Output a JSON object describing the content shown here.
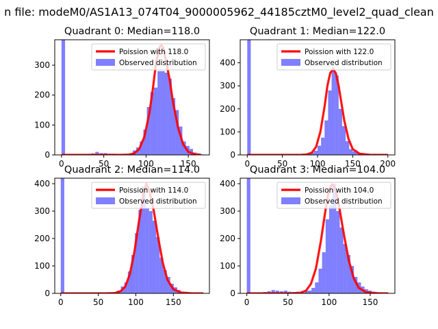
{
  "figure": {
    "suptitle": "n file: modeM0/AS1A13_074T04_9000005962_44185cztM0_level2_quad_clean"
  },
  "colors": {
    "bars": "#0000ff",
    "bar_alpha": 0.5,
    "poisson": "#ff0000"
  },
  "chart_data": [
    {
      "type": "bar",
      "title": "Quadrant 0: Median=118.0",
      "xlim": [
        -8,
        175
      ],
      "ylim": [
        0,
        385
      ],
      "xticks": [
        0,
        50,
        100,
        150
      ],
      "yticks": [
        0,
        100,
        200,
        300
      ],
      "bin_width": 4.2,
      "legend": [
        "Poission with 118.0",
        "Observed distribution"
      ],
      "series": [
        {
          "name": "Observed distribution",
          "x": [
            0,
            30,
            35,
            40,
            45,
            50,
            55,
            60,
            65,
            70,
            75,
            80,
            84.2,
            88.4,
            92.6,
            96.8,
            101,
            105.2,
            109.4,
            113.6,
            117.8,
            122,
            126.2,
            130.4,
            134.6,
            138.8,
            143,
            147.2,
            151.4,
            155.6,
            159.8,
            164
          ],
          "values": [
            400,
            3,
            5,
            10,
            6,
            6,
            4,
            4,
            3,
            3,
            3,
            5,
            15,
            25,
            45,
            85,
            160,
            210,
            225,
            280,
            280,
            275,
            255,
            190,
            150,
            95,
            45,
            30,
            20,
            8,
            5,
            2
          ]
        },
        {
          "name": "Poission with 118.0",
          "x": [
            0,
            70,
            80,
            86,
            92,
            98,
            104,
            108,
            112,
            116,
            118,
            120,
            124,
            128,
            132,
            138,
            144,
            150,
            158,
            165
          ],
          "values": [
            0,
            0,
            1,
            5,
            20,
            60,
            140,
            220,
            310,
            360,
            367,
            360,
            310,
            250,
            175,
            90,
            35,
            10,
            2,
            0
          ]
        }
      ]
    },
    {
      "type": "bar",
      "title": "Quadrant 1: Median=122.0",
      "xlim": [
        -10,
        210
      ],
      "ylim": [
        0,
        500
      ],
      "xticks": [
        0,
        50,
        100,
        150,
        200
      ],
      "yticks": [
        0,
        100,
        200,
        300,
        400
      ],
      "bin_width": 5,
      "legend": [
        "Poission with 122.0",
        "Observed distribution"
      ],
      "series": [
        {
          "name": "Observed distribution",
          "x": [
            0,
            85,
            90,
            95,
            100,
            105,
            110,
            115,
            120,
            125,
            130,
            135,
            140,
            145,
            150,
            155,
            160,
            165,
            170,
            175,
            180,
            185,
            190
          ],
          "values": [
            500,
            5,
            10,
            18,
            40,
            75,
            150,
            280,
            380,
            345,
            200,
            125,
            60,
            25,
            15,
            10,
            8,
            5,
            4,
            3,
            3,
            2,
            2
          ]
        },
        {
          "name": "Poission with 122.0",
          "x": [
            0,
            75,
            85,
            92,
            98,
            104,
            110,
            114,
            118,
            122,
            126,
            130,
            134,
            138,
            144,
            150,
            160,
            175,
            200
          ],
          "values": [
            0,
            0,
            2,
            10,
            35,
            100,
            210,
            300,
            355,
            372,
            355,
            300,
            225,
            150,
            70,
            25,
            5,
            0,
            0
          ]
        }
      ]
    },
    {
      "type": "bar",
      "title": "Quadrant 2: Median=114.0",
      "xlim": [
        -8,
        198
      ],
      "ylim": [
        0,
        420
      ],
      "xticks": [
        0,
        50,
        100,
        150
      ],
      "yticks": [
        0,
        100,
        200,
        300,
        400
      ],
      "bin_width": 4.7,
      "legend": [
        "Poission with 114.0",
        "Observed distribution"
      ],
      "series": [
        {
          "name": "Observed distribution",
          "x": [
            0,
            50,
            60,
            70,
            75,
            80,
            84.7,
            89.4,
            94.1,
            98.8,
            103.5,
            108.2,
            112.9,
            117.6,
            122.3,
            127,
            131.7,
            136.4,
            141.1,
            145.8,
            150.5,
            155.2,
            159.9,
            164.6,
            169.3,
            174
          ],
          "values": [
            420,
            2,
            3,
            5,
            10,
            25,
            40,
            80,
            140,
            220,
            305,
            390,
            310,
            300,
            265,
            205,
            130,
            85,
            60,
            35,
            22,
            12,
            6,
            4,
            2,
            1
          ]
        },
        {
          "name": "Poission with 114.0",
          "x": [
            0,
            60,
            72,
            80,
            86,
            92,
            98,
            104,
            110,
            114,
            118,
            124,
            130,
            136,
            142,
            150,
            160,
            175,
            190
          ],
          "values": [
            0,
            0,
            1,
            8,
            25,
            70,
            150,
            260,
            360,
            400,
            375,
            300,
            200,
            110,
            50,
            15,
            3,
            0,
            0
          ]
        }
      ]
    },
    {
      "type": "bar",
      "title": "Quadrant 3: Median=104.0",
      "xlim": [
        -8,
        180
      ],
      "ylim": [
        0,
        420
      ],
      "xticks": [
        0,
        50,
        100,
        150
      ],
      "yticks": [
        0,
        100,
        200,
        300,
        400
      ],
      "bin_width": 4.3,
      "legend": [
        "Poission with 104.0",
        "Observed distribution"
      ],
      "series": [
        {
          "name": "Observed distribution",
          "x": [
            0,
            20,
            25,
            30,
            35,
            40,
            45,
            50,
            55,
            60,
            65,
            70,
            74.3,
            78.6,
            82.9,
            87.2,
            91.5,
            95.8,
            100.1,
            104.4,
            108.7,
            113,
            117.3,
            121.6,
            125.9,
            130.2,
            134.5,
            138.8,
            143.1,
            147.4,
            151.7,
            156,
            160.3
          ],
          "values": [
            420,
            5,
            8,
            12,
            10,
            8,
            10,
            6,
            5,
            6,
            4,
            10,
            10,
            20,
            40,
            90,
            150,
            270,
            320,
            400,
            300,
            240,
            180,
            140,
            100,
            60,
            40,
            25,
            15,
            10,
            6,
            4,
            2
          ]
        },
        {
          "name": "Poission with 104.0",
          "x": [
            0,
            55,
            65,
            72,
            78,
            84,
            90,
            96,
            100,
            104,
            108,
            112,
            118,
            124,
            130,
            136,
            145,
            160,
            172
          ],
          "values": [
            0,
            0,
            2,
            10,
            35,
            90,
            190,
            310,
            380,
            398,
            380,
            320,
            215,
            120,
            55,
            20,
            4,
            0,
            0
          ]
        }
      ]
    }
  ]
}
